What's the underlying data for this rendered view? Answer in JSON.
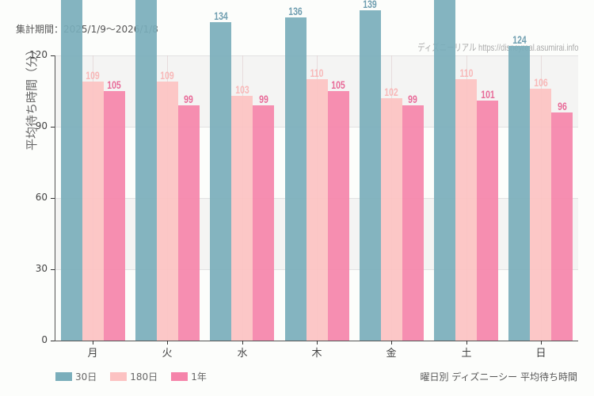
{
  "header": {
    "period": "集計期間：2025/1/9〜2026/1/8",
    "credit": "ディズニーリアル https://disneyreal.asumirai.info"
  },
  "footer": {
    "subtitle": "曜日別 ディズニーシー 平均待ち時間"
  },
  "colors": {
    "30d": "#7aaebb",
    "180d": "#fcc2c2",
    "1y": "#f584aa",
    "label_30d": "#6f9eb0",
    "label_180d": "#f8b8b8",
    "label_1y": "#e86a98"
  },
  "chart_data": {
    "type": "bar",
    "title": "曜日別 ディズニーシー 平均待ち時間",
    "subtitle": "集計期間：2025/1/9〜2026/1/8",
    "xlabel": "",
    "ylabel": "平均待ち時間（分）",
    "categories": [
      "月",
      "火",
      "水",
      "木",
      "金",
      "土",
      "日"
    ],
    "series": [
      {
        "name": "30日",
        "values": [
          null,
          null,
          134,
          136,
          139,
          null,
          124
        ],
        "note": "Mon, Tue, Sat bars exceed axis top (>143), labels clipped"
      },
      {
        "name": "180日",
        "values": [
          109,
          109,
          103,
          110,
          102,
          110,
          106
        ]
      },
      {
        "name": "1年",
        "values": [
          105,
          99,
          99,
          105,
          99,
          101,
          96
        ]
      }
    ],
    "ylim": [
      0,
      120
    ],
    "yticks": [
      0,
      30,
      60,
      90,
      120
    ],
    "grid": true,
    "legend_position": "bottom-left"
  },
  "legend": [
    {
      "label": "30日",
      "color_key": "30d"
    },
    {
      "label": "180日",
      "color_key": "180d"
    },
    {
      "label": "1年",
      "color_key": "1y"
    }
  ]
}
